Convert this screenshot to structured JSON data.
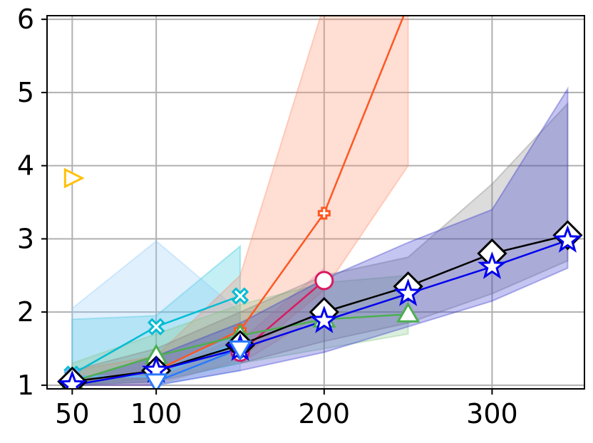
{
  "chart_data": {
    "type": "line",
    "title": "",
    "xlabel": "",
    "ylabel": "",
    "xlim": [
      35,
      355
    ],
    "ylim": [
      0.95,
      6.05
    ],
    "xticks": [
      50,
      100,
      200,
      300
    ],
    "xtick_labels": [
      "50",
      "100",
      "200",
      "300"
    ],
    "yticks": [
      1,
      2,
      3,
      4,
      5,
      6
    ],
    "ytick_labels": [
      "1",
      "2",
      "3",
      "4",
      "5",
      "6"
    ],
    "grid": true,
    "legend": "none",
    "series": [
      {
        "color": "#00bcd4",
        "band_color": "#26c6da",
        "marker": "x",
        "x": [
          50,
          100,
          150
        ],
        "y": [
          1.15,
          1.8,
          2.22
        ],
        "band_low": [
          1.0,
          1.05,
          1.3
        ],
        "band_high": [
          1.9,
          1.95,
          2.9
        ]
      },
      {
        "color": "#64b5f6",
        "band_color": "#90caf9",
        "marker": "x",
        "x": [
          50,
          100,
          150
        ],
        "y": [
          1.12,
          1.12,
          1.6
        ],
        "band_low": [
          1.0,
          1.0,
          1.2
        ],
        "band_high": [
          2.05,
          2.97,
          2.0
        ]
      },
      {
        "color": "#ff5722",
        "band_color": "#ff8a65",
        "marker": "plus",
        "x": [
          50,
          100,
          150,
          200,
          250
        ],
        "y": [
          1.05,
          1.2,
          1.75,
          3.35,
          6.2
        ],
        "band_low": [
          1.0,
          1.0,
          1.35,
          2.3,
          4.0
        ],
        "band_high": [
          1.2,
          1.4,
          2.5,
          6.2,
          6.2
        ]
      },
      {
        "color": "#d81b60",
        "band_color": "#f48fb1",
        "marker": "circle",
        "x": [
          150,
          200
        ],
        "y": [
          1.45,
          2.43
        ],
        "band_low": [
          1.3,
          2.0
        ],
        "band_high": [
          1.6,
          2.6
        ]
      },
      {
        "color": "#4caf50",
        "band_color": "#81c784",
        "marker": "triangle-up",
        "x": [
          50,
          100,
          150,
          200,
          250
        ],
        "y": [
          1.05,
          1.4,
          1.68,
          1.9,
          1.97
        ],
        "band_low": [
          1.0,
          1.1,
          1.3,
          1.5,
          1.7
        ],
        "band_high": [
          1.3,
          1.7,
          2.1,
          2.4,
          2.5
        ]
      },
      {
        "color": "#000000",
        "band_color": "#808080",
        "marker": "diamond",
        "x": [
          50,
          100,
          150,
          200,
          250,
          300,
          345
        ],
        "y": [
          1.05,
          1.2,
          1.55,
          2.0,
          2.35,
          2.8,
          3.05
        ],
        "band_low": [
          1.0,
          1.05,
          1.3,
          1.6,
          1.85,
          2.25,
          2.7
        ],
        "band_high": [
          1.2,
          1.5,
          2.0,
          2.5,
          2.75,
          3.75,
          4.85
        ]
      },
      {
        "color": "#0000ee",
        "band_color": "#3030cc",
        "marker": "star",
        "x": [
          50,
          100,
          150,
          200,
          250,
          300,
          345
        ],
        "y": [
          1.0,
          1.2,
          1.5,
          1.88,
          2.25,
          2.62,
          2.98
        ],
        "band_low": [
          1.0,
          1.0,
          1.2,
          1.45,
          1.8,
          2.15,
          2.6
        ],
        "band_high": [
          1.05,
          1.4,
          1.85,
          2.45,
          2.95,
          3.4,
          5.05
        ]
      },
      {
        "color": "#2979ff",
        "band_color": "#90caf9",
        "marker": "triangle-down",
        "x": [
          100,
          150
        ],
        "y": [
          1.05,
          1.5
        ],
        "band_low": [
          1.0,
          1.3
        ],
        "band_high": [
          1.2,
          1.7
        ]
      },
      {
        "color": "#ffc107",
        "band_color": "#ffe082",
        "marker": "triangle-right",
        "x": [
          50
        ],
        "y": [
          3.83
        ],
        "band_low": [
          3.83
        ],
        "band_high": [
          3.83
        ]
      }
    ]
  }
}
